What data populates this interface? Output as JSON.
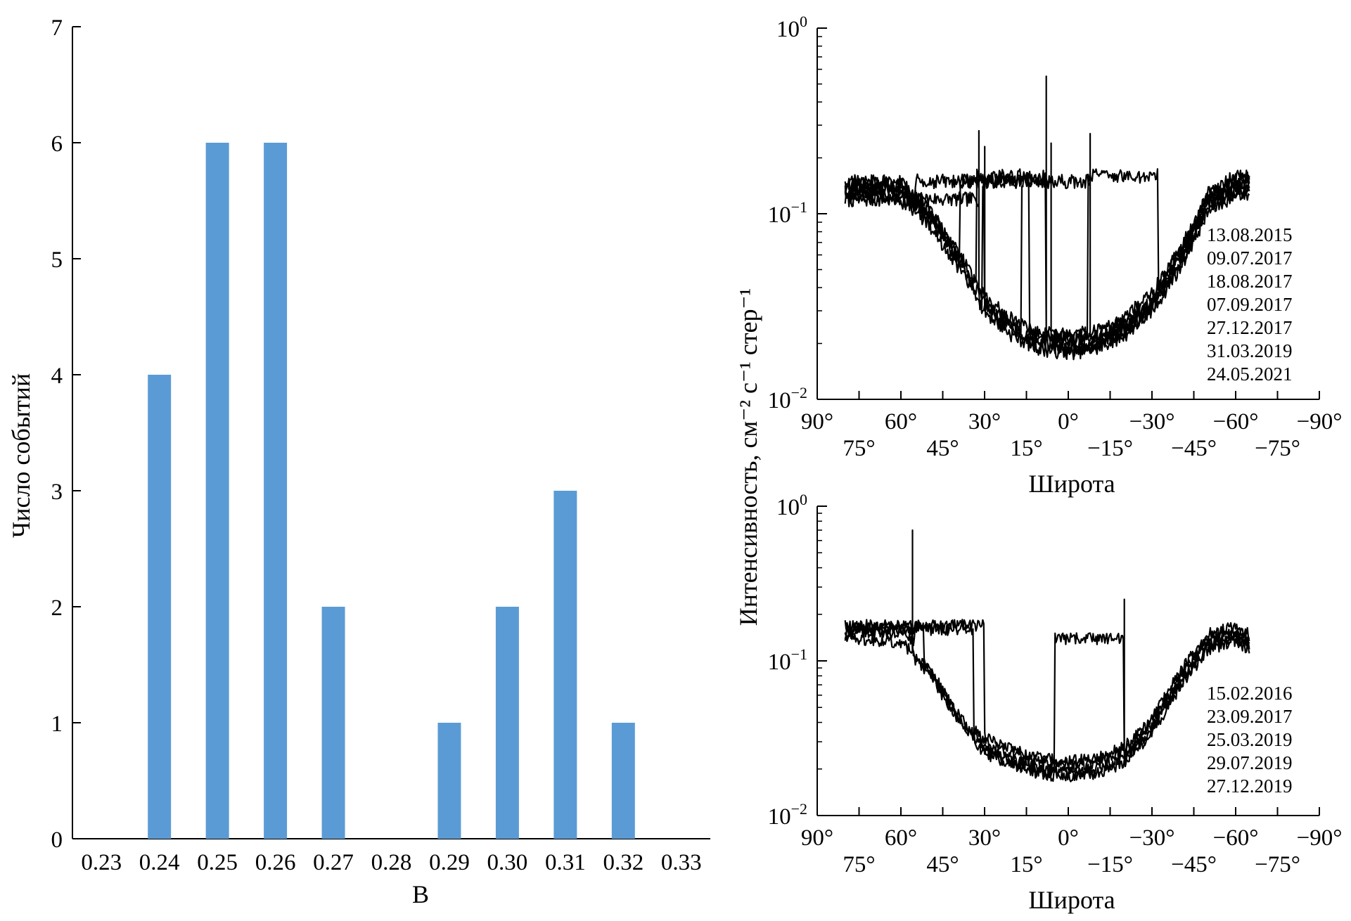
{
  "chart_data": [
    {
      "type": "bar",
      "title": "",
      "xlabel": "B",
      "ylabel": "Число событий",
      "categories": [
        "0.23",
        "0.24",
        "0.25",
        "0.26",
        "0.27",
        "0.28",
        "0.29",
        "0.30",
        "0.31",
        "0.32",
        "0.33"
      ],
      "values": [
        0,
        4,
        6,
        6,
        2,
        0,
        1,
        2,
        3,
        1,
        0
      ],
      "ylim": [
        0,
        7
      ],
      "yticks": [
        "0",
        "1",
        "2",
        "3",
        "4",
        "5",
        "6",
        "7"
      ],
      "bar_color": "#5b9bd5",
      "grid": false
    },
    {
      "type": "line",
      "xlabel": "Широта",
      "ylabel": "Интенсивность, см⁻² с⁻¹ стер⁻¹",
      "xlim": [
        90,
        -90
      ],
      "ylim": [
        0.01,
        1
      ],
      "yscale": "log",
      "xticks_upper": [
        "90°",
        "60°",
        "30°",
        "0°",
        "−30°",
        "−60°",
        "−90°"
      ],
      "xticks_lower": [
        "75°",
        "45°",
        "15°",
        "−15°",
        "−45°",
        "−75°"
      ],
      "yticks": [
        {
          "base": "10",
          "exp": "0"
        },
        {
          "base": "10",
          "exp": "−1"
        },
        {
          "base": "10",
          "exp": "−2"
        }
      ],
      "legend": [
        "13.08.2015",
        "09.07.2017",
        "18.08.2017",
        "07.09.2017",
        "27.12.2017",
        "31.03.2019",
        "24.05.2021"
      ],
      "legend_position": "right",
      "series_profile": {
        "x": [
          80,
          60,
          50,
          40,
          30,
          20,
          10,
          0,
          -10,
          -20,
          -30,
          -40,
          -50,
          -60,
          -65
        ],
        "y": [
          0.14,
          0.14,
          0.1,
          0.06,
          0.035,
          0.026,
          0.022,
          0.021,
          0.022,
          0.026,
          0.035,
          0.06,
          0.12,
          0.15,
          0.15
        ]
      },
      "series": [
        {
          "drop_lat": 32,
          "plateau": 0.12,
          "spike_y": 0.28
        },
        {
          "drop_lat": 30,
          "plateau": 0.15,
          "spike_y": 0.23
        },
        {
          "drop_lat": 14,
          "plateau": 0.15,
          "spike_y": 0.0
        },
        {
          "drop_lat": 8,
          "plateau": 0.16,
          "spike_y": 0.55
        },
        {
          "drop_lat": 6,
          "plateau": 0.15,
          "spike_y": 0.24
        },
        {
          "drop_lat": -8,
          "plateau": 0.15,
          "spike_y": 0.27
        },
        {
          "drop_lat": -32,
          "plateau": 0.16,
          "spike_y": 0.0
        }
      ],
      "line_color": "#000000"
    },
    {
      "type": "line",
      "xlabel": "Широта",
      "ylabel": "Интенсивность, см⁻² с⁻¹ стер⁻¹",
      "xlim": [
        90,
        -90
      ],
      "ylim": [
        0.01,
        1
      ],
      "yscale": "log",
      "xticks_upper": [
        "90°",
        "60°",
        "30°",
        "0°",
        "−30°",
        "−60°",
        "−90°"
      ],
      "xticks_lower": [
        "75°",
        "45°",
        "15°",
        "−15°",
        "−45°",
        "−75°"
      ],
      "yticks": [
        {
          "base": "10",
          "exp": "0"
        },
        {
          "base": "10",
          "exp": "−1"
        },
        {
          "base": "10",
          "exp": "−2"
        }
      ],
      "legend": [
        "15.02.2016",
        "23.09.2017",
        "25.03.2019",
        "29.07.2019",
        "27.12.2019"
      ],
      "legend_position": "right",
      "series_profile": {
        "x": [
          80,
          60,
          50,
          40,
          30,
          20,
          10,
          0,
          -10,
          -20,
          -30,
          -40,
          -50,
          -60,
          -65
        ],
        "y": [
          0.16,
          0.15,
          0.1,
          0.05,
          0.03,
          0.025,
          0.022,
          0.021,
          0.022,
          0.026,
          0.04,
          0.08,
          0.14,
          0.16,
          0.14
        ]
      },
      "series": [
        {
          "drop_lat": 56,
          "plateau": 0.16,
          "spike_y": 0.7
        },
        {
          "drop_lat": 52,
          "plateau": 0.17,
          "spike_y": 0.0
        },
        {
          "drop_lat": 34,
          "plateau": 0.16,
          "spike_y": 0.0
        },
        {
          "drop_lat": 30,
          "plateau": 0.17,
          "spike_y": 0.0
        },
        {
          "drop_lat": -20,
          "plateau": 0.14,
          "spike_y": 0.25
        }
      ],
      "line_color": "#000000"
    }
  ]
}
